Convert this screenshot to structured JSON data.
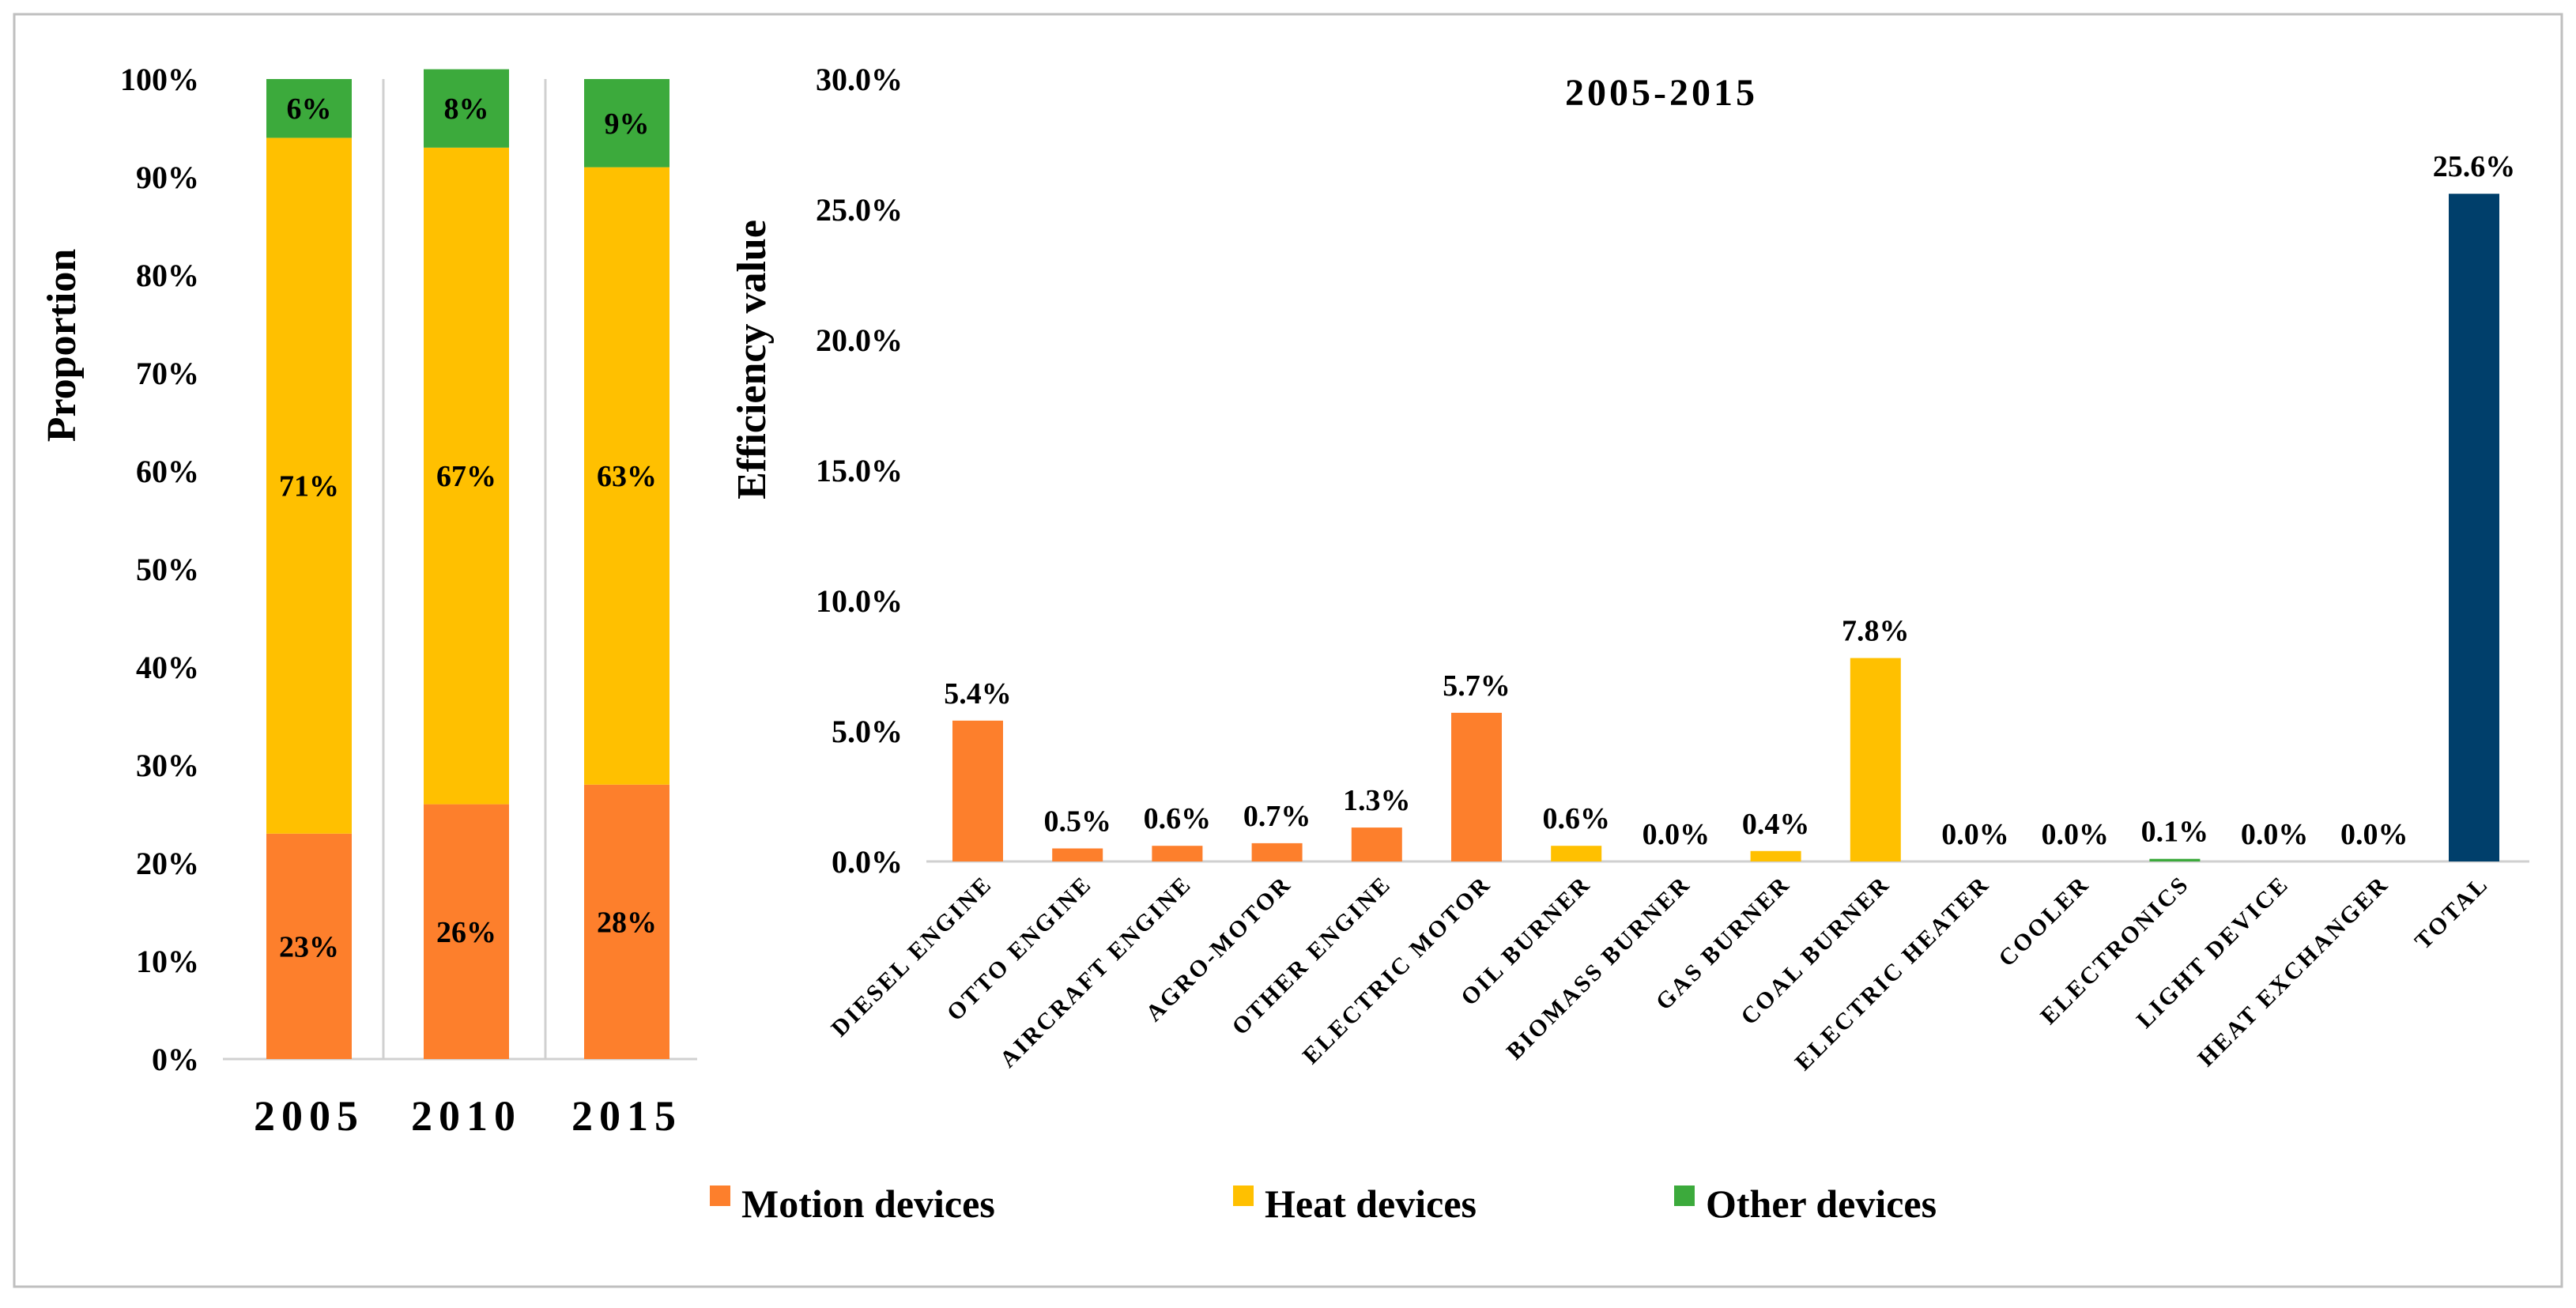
{
  "colors": {
    "motion": "#FD7F2C",
    "heat": "#FFC000",
    "other": "#3CAA3C",
    "total": "#003F6B",
    "frame": "#BFBFBF",
    "divider": "#D0D0D0"
  },
  "legend": {
    "entries": [
      {
        "label": "Motion devices",
        "color_key": "motion"
      },
      {
        "label": "Heat devices",
        "color_key": "heat"
      },
      {
        "label": "Other devices",
        "color_key": "other"
      }
    ]
  },
  "chart_data": [
    {
      "type": "bar",
      "stacked": true,
      "percent": true,
      "title": "",
      "ylabel": "Proportion",
      "xlabel": "",
      "ylim": [
        0,
        100
      ],
      "y_ticks": [
        "0%",
        "10%",
        "20%",
        "30%",
        "40%",
        "50%",
        "60%",
        "70%",
        "80%",
        "90%",
        "100%"
      ],
      "categories": [
        "2005",
        "2010",
        "2015"
      ],
      "series": [
        {
          "name": "Motion devices",
          "values": [
            23,
            26,
            28
          ],
          "labels": [
            "23%",
            "26%",
            "28%"
          ]
        },
        {
          "name": "Heat devices",
          "values": [
            71,
            67,
            63
          ],
          "labels": [
            "71%",
            "67%",
            "63%"
          ]
        },
        {
          "name": "Other devices",
          "values": [
            6,
            8,
            9
          ],
          "labels": [
            "6%",
            "8%",
            "9%"
          ]
        }
      ]
    },
    {
      "type": "bar",
      "title": "2005-2015",
      "ylabel": "Efficiency value",
      "xlabel": "",
      "ylim": [
        0,
        30
      ],
      "y_ticks": [
        "0.0%",
        "5.0%",
        "10.0%",
        "15.0%",
        "20.0%",
        "25.0%",
        "30.0%"
      ],
      "categories": [
        "DIESEL ENGINE",
        "OTTO ENGINE",
        "AIRCRAFT ENGINE",
        "AGRO-MOTOR",
        "OTHER ENGINE",
        "ELECTRIC MOTOR",
        "OIL BURNER",
        "BIOMASS BURNER",
        "GAS BURNER",
        "COAL BURNER",
        "ELECTRIC HEATER",
        "COOLER",
        "ELECTRONICS",
        "LIGHT DEVICE",
        "HEAT EXCHANGER",
        "TOTAL"
      ],
      "values": [
        5.4,
        0.5,
        0.6,
        0.7,
        1.3,
        5.7,
        0.6,
        0.0,
        0.4,
        7.8,
        0.0,
        0.0,
        0.1,
        0.0,
        0.0,
        25.6
      ],
      "labels": [
        "5.4%",
        "0.5%",
        "0.6%",
        "0.7%",
        "1.3%",
        "5.7%",
        "0.6%",
        "0.0%",
        "0.4%",
        "7.8%",
        "0.0%",
        "0.0%",
        "0.1%",
        "0.0%",
        "0.0%",
        "25.6%"
      ],
      "groups": [
        "motion",
        "motion",
        "motion",
        "motion",
        "motion",
        "motion",
        "heat",
        "heat",
        "heat",
        "heat",
        "other",
        "other",
        "other",
        "other",
        "other",
        "total"
      ]
    }
  ]
}
